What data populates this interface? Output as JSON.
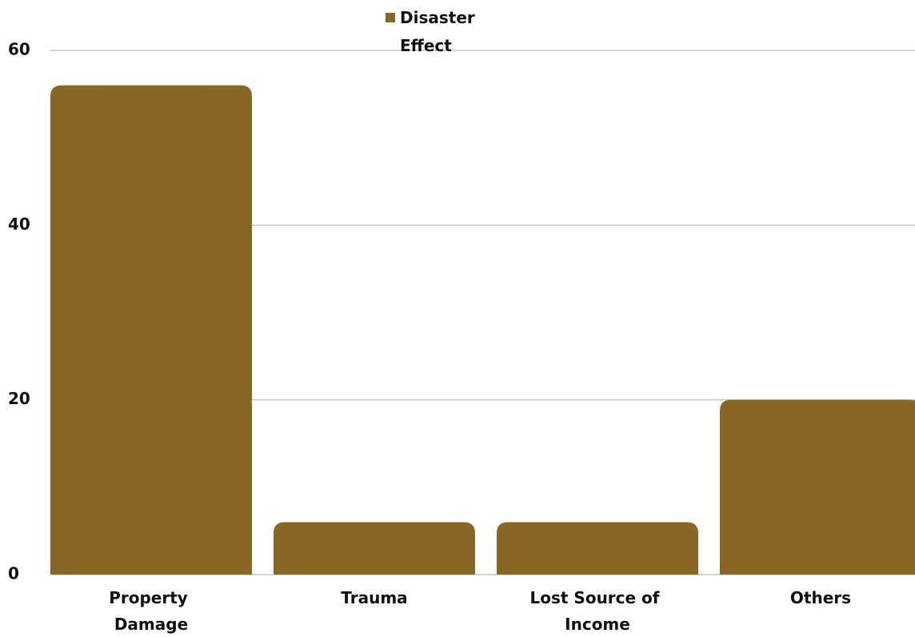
{
  "chart_data": {
    "type": "bar",
    "categories": [
      "Property Damage",
      "Trauma",
      "Lost Source of Income",
      "Others"
    ],
    "series": [
      {
        "name": "Disaster Effect",
        "color": "#8a6625",
        "values": [
          56,
          6,
          6,
          20
        ]
      }
    ],
    "ylim": [
      0,
      60
    ],
    "yticks": [
      0,
      20,
      40,
      60
    ],
    "grid": true,
    "legend": "top"
  }
}
